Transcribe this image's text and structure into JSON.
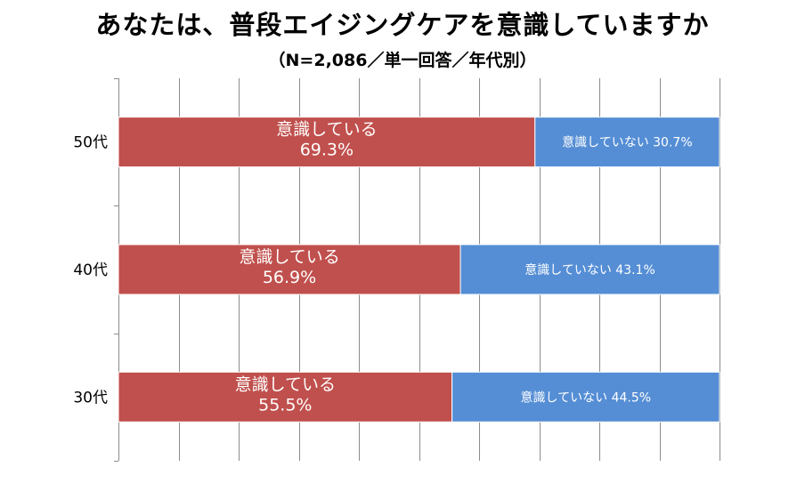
{
  "chart_data": {
    "type": "bar",
    "orientation": "horizontal",
    "stacked": true,
    "title": "あなたは、普段エイジングケアを意識していますか",
    "subtitle": "（N=2,086／単一回答／年代別）",
    "categories": [
      "50代",
      "40代",
      "30代"
    ],
    "series": [
      {
        "name": "意識している",
        "values": [
          69.3,
          56.9,
          55.5
        ],
        "color": "#c0504d",
        "labels": [
          "意識している\n69.3%",
          "意識している\n56.9%",
          "意識している\n55.5%"
        ]
      },
      {
        "name": "意識していない",
        "values": [
          30.7,
          43.1,
          44.5
        ],
        "color": "#558ed5",
        "labels": [
          "意識していない 30.7%",
          "意識していない 43.1%",
          "意識していない 44.5%"
        ]
      }
    ],
    "xlim": [
      0,
      100
    ],
    "grid": true,
    "legend": "none"
  }
}
